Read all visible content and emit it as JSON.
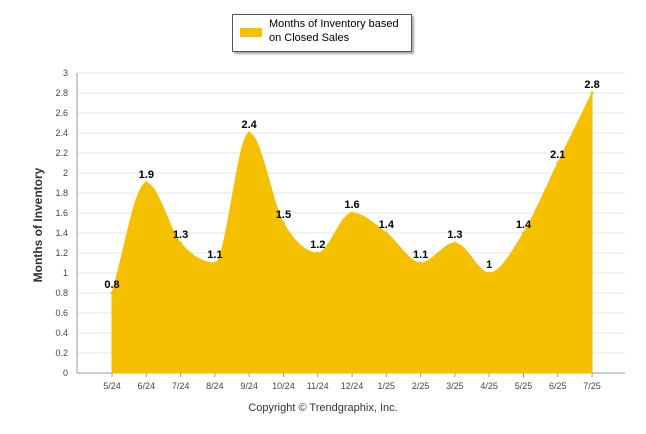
{
  "legend": {
    "label_line1": "Months of Inventory based",
    "label_line2": "on Closed Sales"
  },
  "footer": {
    "copyright": "Copyright © Trendgraphix, Inc."
  },
  "colors": {
    "series": "#F5C000",
    "grid": "#E6E6E6",
    "axis": "#999999"
  },
  "chart_data": {
    "type": "area",
    "title": "",
    "xlabel": "",
    "ylabel": "Months of Inventory",
    "ylim": [
      0,
      3
    ],
    "yticks": [
      0,
      0.2,
      0.4,
      0.6,
      0.8,
      1,
      1.2,
      1.4,
      1.6,
      1.8,
      2,
      2.2,
      2.4,
      2.6,
      2.8,
      3
    ],
    "grid": true,
    "legend_position": "top-center",
    "categories": [
      "5/24",
      "6/24",
      "7/24",
      "8/24",
      "9/24",
      "10/24",
      "11/24",
      "12/24",
      "1/25",
      "2/25",
      "3/25",
      "4/25",
      "5/25",
      "6/25",
      "7/25"
    ],
    "series": [
      {
        "name": "Months of Inventory based on Closed Sales",
        "values": [
          0.8,
          1.9,
          1.3,
          1.1,
          2.4,
          1.5,
          1.2,
          1.6,
          1.4,
          1.1,
          1.3,
          1.0,
          1.4,
          2.1,
          2.8
        ],
        "labels": [
          "0.8",
          "1.9",
          "1.3",
          "1.1",
          "2.4",
          "1.5",
          "1.2",
          "1.6",
          "1.4",
          "1.1",
          "1.3",
          "1",
          "1.4",
          "2.1",
          "2.8"
        ]
      }
    ]
  }
}
